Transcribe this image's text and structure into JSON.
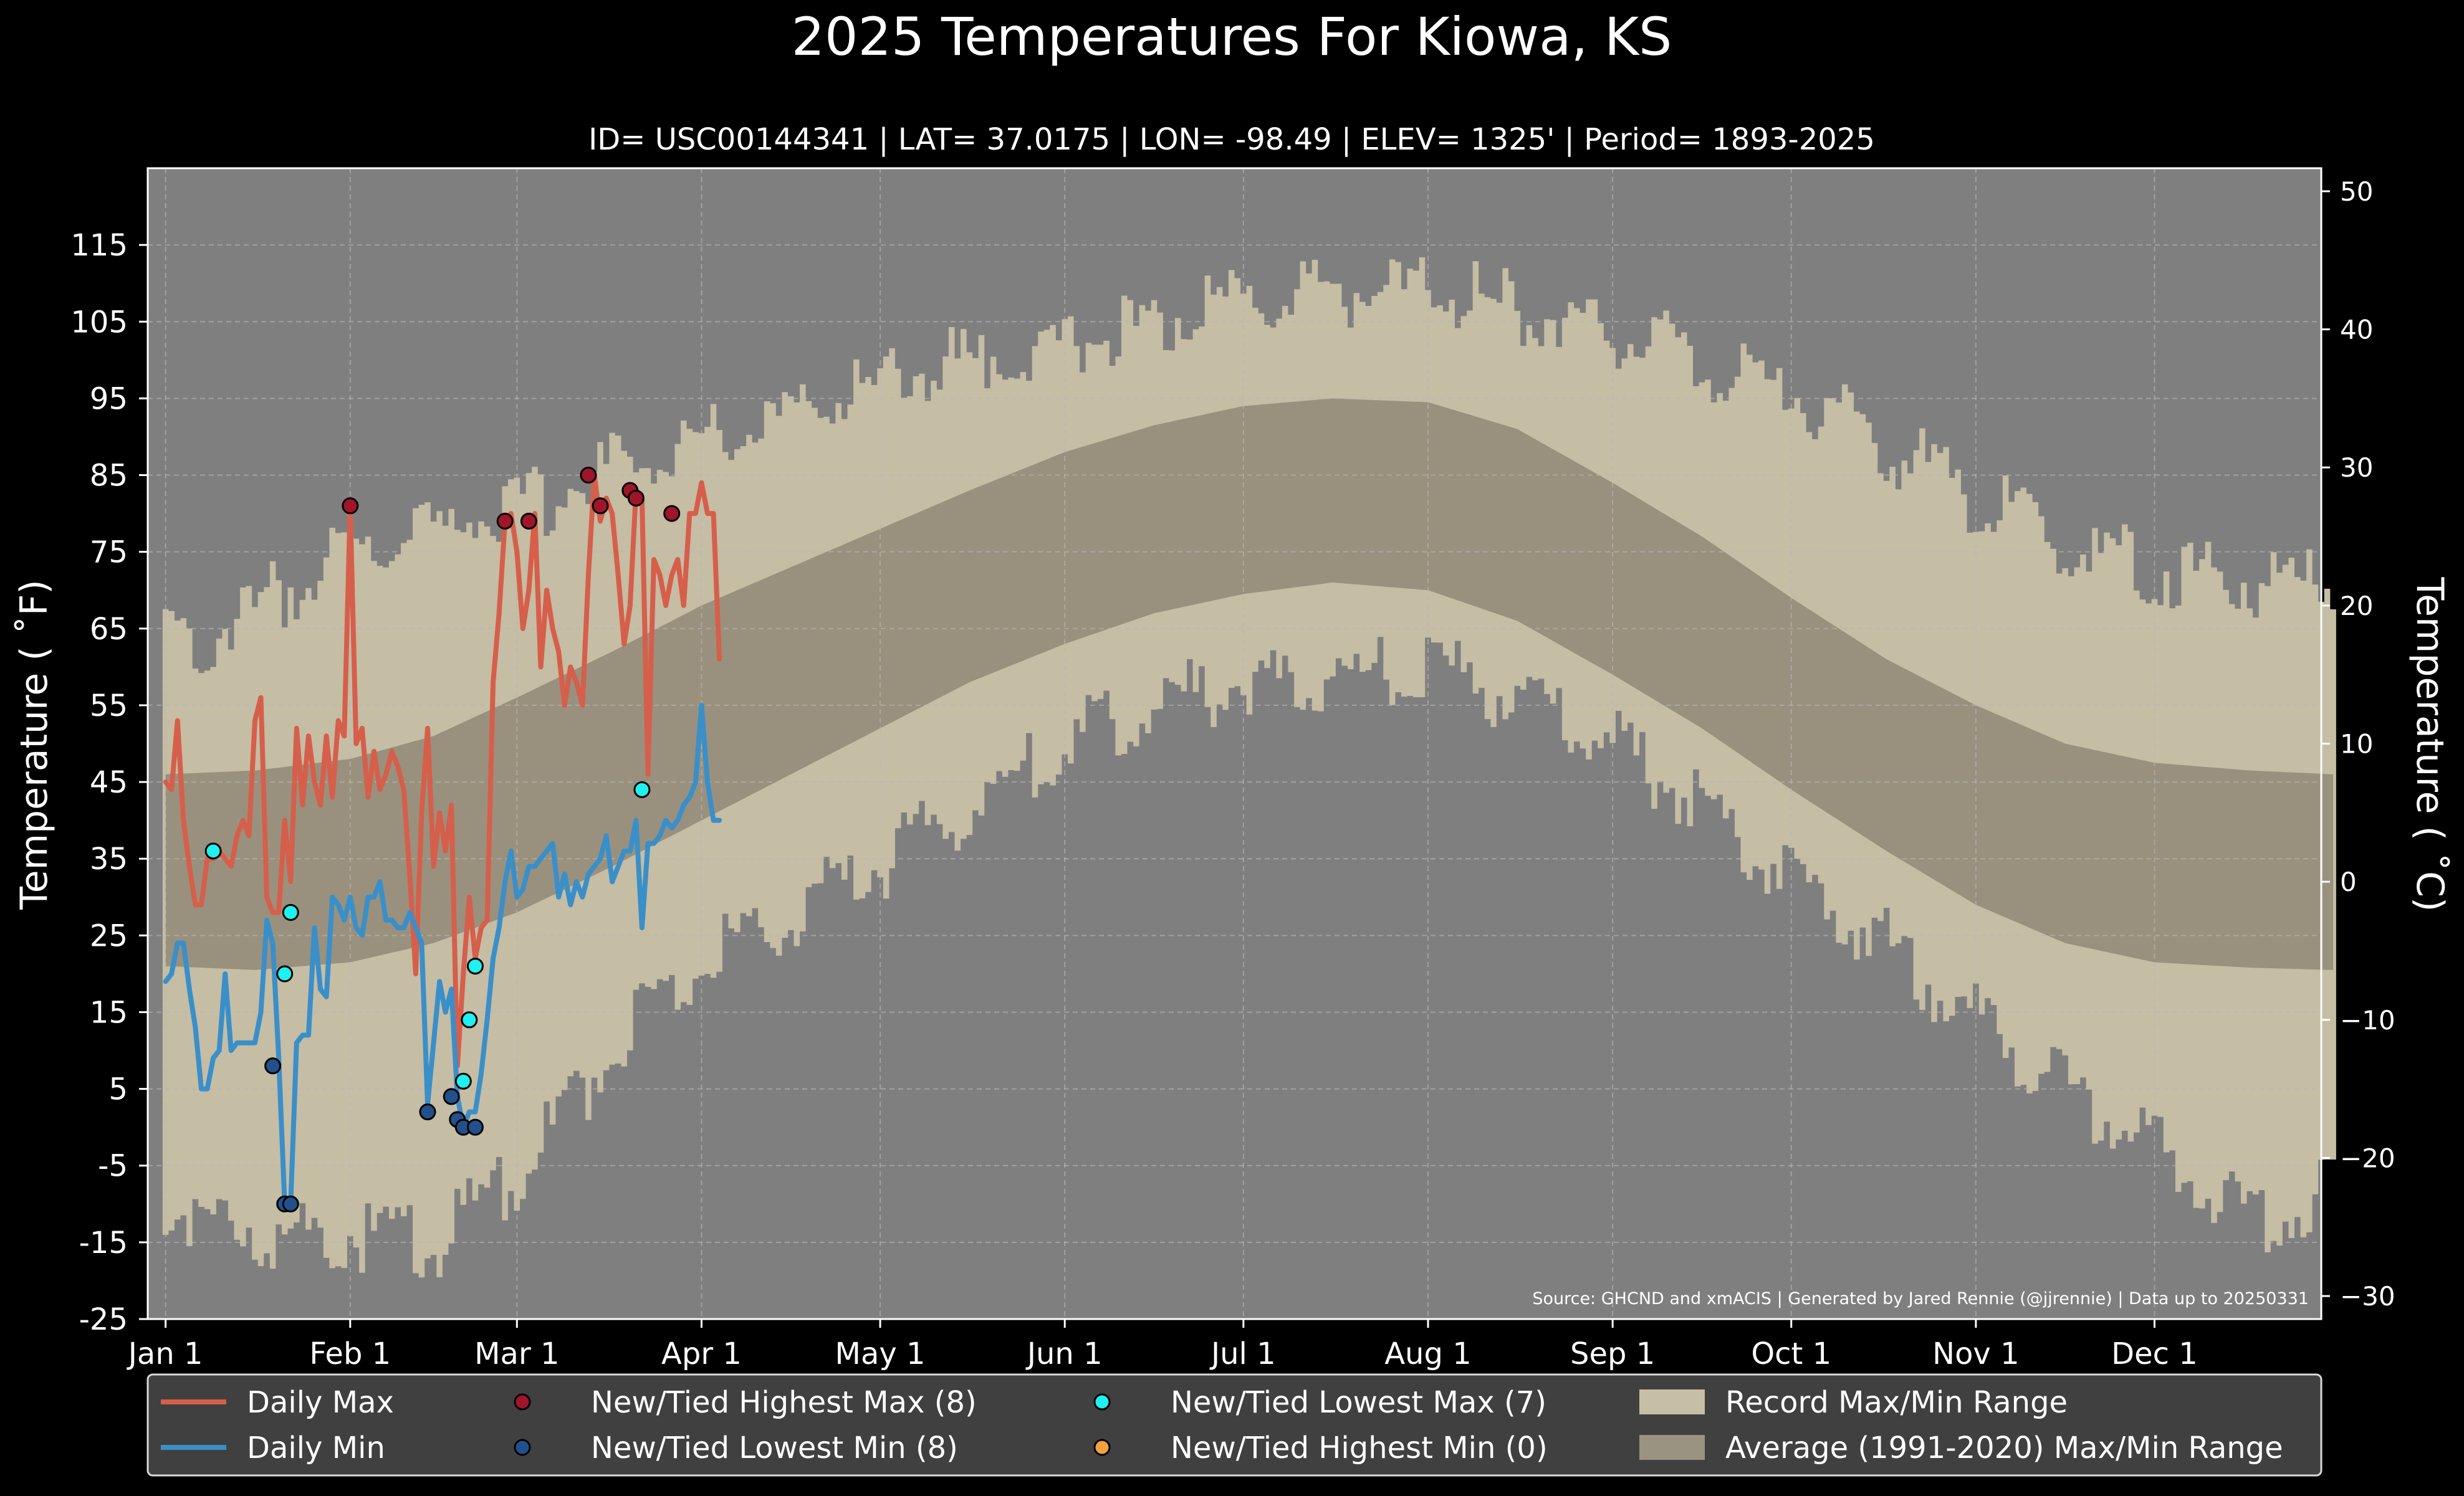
{
  "chart_data": {
    "type": "line",
    "title": "2025 Temperatures For Kiowa, KS",
    "subtitle": "ID= USC00144341 | LAT= 37.0175 | LON= -98.49 | ELEV= 1325' | Period= 1893-2025",
    "ylabel_left": "Temperature ( $^\\circ$F)",
    "ylabel_left_display": "Temperature ( ˚F)",
    "ylabel_right_display": "Temperature ( ˚C)",
    "source": "Source: GHCND and xmACIS | Generated by Jared Rennie (@jjrennie) | Data up to 20250331",
    "ylim_f": [
      -25,
      125
    ],
    "xlim_day": [
      -3,
      362
    ],
    "grid": true,
    "legend_position": "bottom",
    "yticks_f": [
      -25,
      -15,
      -5,
      5,
      15,
      25,
      35,
      45,
      55,
      65,
      75,
      85,
      95,
      105,
      115
    ],
    "yticks_c": [
      -30,
      -20,
      -10,
      0,
      10,
      20,
      30,
      40,
      50
    ],
    "yticks_c_labels": [
      "−30",
      "−20",
      "−10",
      "0",
      "10",
      "20",
      "30",
      "40",
      "50"
    ],
    "xticks": [
      {
        "day": 0,
        "label": "Jan 1"
      },
      {
        "day": 31,
        "label": "Feb 1"
      },
      {
        "day": 59,
        "label": "Mar 1"
      },
      {
        "day": 90,
        "label": "Apr 1"
      },
      {
        "day": 120,
        "label": "May 1"
      },
      {
        "day": 151,
        "label": "Jun 1"
      },
      {
        "day": 181,
        "label": "Jul 1"
      },
      {
        "day": 212,
        "label": "Aug 1"
      },
      {
        "day": 243,
        "label": "Sep 1"
      },
      {
        "day": 273,
        "label": "Oct 1"
      },
      {
        "day": 304,
        "label": "Nov 1"
      },
      {
        "day": 334,
        "label": "Dec 1"
      }
    ],
    "record_max_anchors": [
      [
        0,
        63
      ],
      [
        10,
        65
      ],
      [
        20,
        70
      ],
      [
        31,
        75
      ],
      [
        45,
        78
      ],
      [
        59,
        80
      ],
      [
        75,
        86
      ],
      [
        90,
        90
      ],
      [
        105,
        93
      ],
      [
        120,
        97
      ],
      [
        135,
        100
      ],
      [
        151,
        102
      ],
      [
        166,
        105
      ],
      [
        181,
        107
      ],
      [
        196,
        109
      ],
      [
        212,
        109
      ],
      [
        227,
        107
      ],
      [
        243,
        104
      ],
      [
        258,
        100
      ],
      [
        273,
        96
      ],
      [
        289,
        89
      ],
      [
        304,
        82
      ],
      [
        319,
        76
      ],
      [
        334,
        73
      ],
      [
        350,
        71
      ],
      [
        364,
        71
      ]
    ],
    "record_min_anchors": [
      [
        0,
        -10
      ],
      [
        10,
        -12
      ],
      [
        20,
        -14
      ],
      [
        31,
        -14
      ],
      [
        40,
        -14
      ],
      [
        45,
        -16
      ],
      [
        50,
        -12
      ],
      [
        59,
        -6
      ],
      [
        70,
        5
      ],
      [
        80,
        14
      ],
      [
        90,
        22
      ],
      [
        105,
        28
      ],
      [
        120,
        34
      ],
      [
        135,
        42
      ],
      [
        151,
        50
      ],
      [
        166,
        55
      ],
      [
        181,
        58
      ],
      [
        196,
        59
      ],
      [
        212,
        60
      ],
      [
        227,
        56
      ],
      [
        243,
        50
      ],
      [
        258,
        42
      ],
      [
        273,
        33
      ],
      [
        289,
        24
      ],
      [
        304,
        14
      ],
      [
        319,
        5
      ],
      [
        334,
        -3
      ],
      [
        345,
        -10
      ],
      [
        355,
        -12
      ],
      [
        364,
        -8
      ]
    ],
    "avg_max_anchors": [
      [
        0,
        46
      ],
      [
        15,
        46.5
      ],
      [
        31,
        48
      ],
      [
        45,
        51
      ],
      [
        59,
        56
      ],
      [
        75,
        62
      ],
      [
        90,
        68
      ],
      [
        105,
        73
      ],
      [
        120,
        78
      ],
      [
        135,
        83
      ],
      [
        151,
        88
      ],
      [
        166,
        91.5
      ],
      [
        181,
        94
      ],
      [
        196,
        95
      ],
      [
        212,
        94.5
      ],
      [
        227,
        91
      ],
      [
        243,
        84
      ],
      [
        258,
        77
      ],
      [
        273,
        69
      ],
      [
        289,
        61
      ],
      [
        304,
        55
      ],
      [
        319,
        50
      ],
      [
        334,
        47.5
      ],
      [
        350,
        46.5
      ],
      [
        364,
        46
      ]
    ],
    "avg_min_anchors": [
      [
        0,
        21
      ],
      [
        15,
        20.5
      ],
      [
        31,
        21.5
      ],
      [
        45,
        24
      ],
      [
        59,
        28
      ],
      [
        75,
        34
      ],
      [
        90,
        40
      ],
      [
        105,
        46
      ],
      [
        120,
        52
      ],
      [
        135,
        58
      ],
      [
        151,
        63
      ],
      [
        166,
        67
      ],
      [
        181,
        69.5
      ],
      [
        196,
        71
      ],
      [
        212,
        70
      ],
      [
        227,
        66
      ],
      [
        243,
        59
      ],
      [
        258,
        52
      ],
      [
        273,
        44
      ],
      [
        289,
        36
      ],
      [
        304,
        29
      ],
      [
        319,
        24
      ],
      [
        334,
        21.5
      ],
      [
        350,
        20.8
      ],
      [
        364,
        20.5
      ]
    ],
    "series": [
      {
        "name": "Daily Max",
        "color": "#d65f4b",
        "values": [
          45,
          44,
          53,
          40,
          34,
          29,
          29,
          35,
          35,
          36,
          35,
          34,
          38,
          40,
          38,
          53,
          56,
          30,
          28,
          28,
          40,
          32,
          52,
          42,
          51,
          45,
          42,
          51,
          43,
          53,
          51,
          81,
          50,
          52,
          43,
          49,
          44,
          46,
          49,
          47,
          44,
          33,
          20,
          41,
          52,
          34,
          41,
          36,
          42,
          8,
          20,
          30,
          22,
          26,
          27,
          58,
          67,
          79,
          80,
          75,
          65,
          70,
          80,
          60,
          70,
          65,
          62,
          55,
          60,
          58,
          55,
          72,
          85,
          79,
          82,
          80,
          72,
          63,
          68,
          83,
          82,
          46,
          74,
          72,
          68,
          72,
          74,
          68,
          80,
          80,
          84,
          80,
          80,
          61
        ]
      },
      {
        "name": "Daily Min",
        "color": "#3a8fc9",
        "values": [
          19,
          20,
          24,
          24,
          18,
          13,
          5,
          5,
          9,
          10,
          20,
          10,
          11,
          11,
          11,
          11,
          15,
          27,
          24,
          9,
          -10,
          -10,
          11,
          12,
          12,
          26,
          18,
          17,
          30,
          29,
          27,
          30,
          26,
          25,
          30,
          30,
          32,
          27,
          27,
          26,
          26,
          28,
          26,
          24,
          3,
          11,
          19,
          15,
          18,
          4,
          0,
          2,
          2,
          7,
          14,
          22,
          26,
          32,
          36,
          30,
          31,
          34,
          34,
          35,
          36,
          37,
          30,
          33,
          29,
          32,
          30,
          33,
          34,
          35,
          38,
          32,
          34,
          36,
          36,
          40,
          26,
          37,
          37,
          38,
          40,
          39,
          40,
          42,
          43,
          45,
          55,
          45,
          40,
          40
        ]
      }
    ],
    "markers": {
      "new_highest_max": [
        [
          31,
          81
        ],
        [
          57,
          79
        ],
        [
          61,
          79
        ],
        [
          71,
          85
        ],
        [
          73,
          81
        ],
        [
          78,
          83
        ],
        [
          79,
          82
        ],
        [
          85,
          80
        ]
      ],
      "new_lowest_min": [
        [
          18,
          8
        ],
        [
          20,
          -10
        ],
        [
          21,
          -10
        ],
        [
          44,
          2
        ],
        [
          48,
          4
        ],
        [
          49,
          1
        ],
        [
          50,
          0
        ],
        [
          52,
          0
        ]
      ],
      "new_lowest_max": [
        [
          8,
          36
        ],
        [
          20,
          20
        ],
        [
          21,
          28
        ],
        [
          50,
          6
        ],
        [
          51,
          14
        ],
        [
          52,
          21
        ],
        [
          80,
          44
        ]
      ],
      "new_highest_min": []
    },
    "legend": [
      {
        "label": "Daily Max",
        "kind": "line",
        "color": "#d65f4b"
      },
      {
        "label": "Daily Min",
        "kind": "line",
        "color": "#3a8fc9"
      },
      {
        "label": "New/Tied Highest Max (8)",
        "kind": "dot",
        "color": "#a0152a"
      },
      {
        "label": "New/Tied Lowest Min (8)",
        "kind": "dot",
        "color": "#22508c"
      },
      {
        "label": "New/Tied Lowest Max (7)",
        "kind": "dot",
        "color": "#1ff0f0"
      },
      {
        "label": "New/Tied Highest Min (0)",
        "kind": "dot",
        "color": "#f5a142"
      },
      {
        "label": "Record Max/Min Range",
        "kind": "box",
        "color": "#c7bea6"
      },
      {
        "label": "Average (1991-2020) Max/Min Range",
        "kind": "box",
        "color": "#9a9381"
      }
    ],
    "colors": {
      "figure_bg": "#000000",
      "plot_bg": "#7f7f7f",
      "record_band": "#c5bda4",
      "avg_band": "#99917e",
      "grid": "#b8b8b8",
      "legend_bg": "#404040"
    }
  }
}
